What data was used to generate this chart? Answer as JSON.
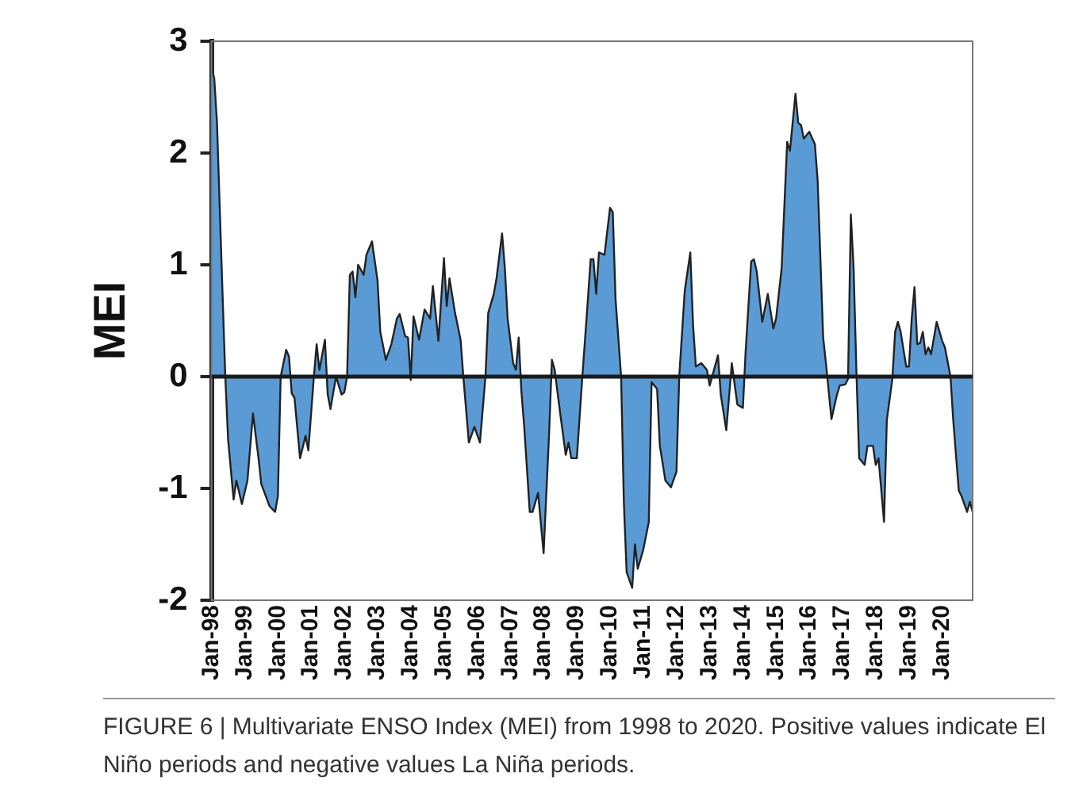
{
  "chart_data": {
    "type": "area",
    "ylabel": "MEI",
    "xlim": [
      "1998-01",
      "2020-12"
    ],
    "xticks": [
      {
        "value": "1998-01",
        "label": "Jan-98"
      },
      {
        "value": "1999-01",
        "label": "Jan-99"
      },
      {
        "value": "2000-01",
        "label": "Jan-00"
      },
      {
        "value": "2001-01",
        "label": "Jan-01"
      },
      {
        "value": "2002-01",
        "label": "Jan-02"
      },
      {
        "value": "2003-01",
        "label": "Jan-03"
      },
      {
        "value": "2004-01",
        "label": "Jan-04"
      },
      {
        "value": "2005-01",
        "label": "Jan-05"
      },
      {
        "value": "2006-01",
        "label": "Jan-06"
      },
      {
        "value": "2007-01",
        "label": "Jan-07"
      },
      {
        "value": "2008-01",
        "label": "Jan-08"
      },
      {
        "value": "2009-01",
        "label": "Jan-09"
      },
      {
        "value": "2010-01",
        "label": "Jan-10"
      },
      {
        "value": "2011-01",
        "label": "Jan-11"
      },
      {
        "value": "2012-01",
        "label": "Jan-12"
      },
      {
        "value": "2013-01",
        "label": "Jan-13"
      },
      {
        "value": "2014-01",
        "label": "Jan-14"
      },
      {
        "value": "2015-01",
        "label": "Jan-15"
      },
      {
        "value": "2016-01",
        "label": "Jan-16"
      },
      {
        "value": "2017-01",
        "label": "Jan-17"
      },
      {
        "value": "2018-01",
        "label": "Jan-18"
      },
      {
        "value": "2019-01",
        "label": "Jan-19"
      },
      {
        "value": "2020-01",
        "label": "Jan-20"
      }
    ],
    "ylim": [
      -2,
      3
    ],
    "yticks": [
      -2,
      -1,
      0,
      1,
      2,
      3
    ],
    "grid": false,
    "legend": false,
    "ref_lines": [
      {
        "axis": "y",
        "value": 0,
        "color": "#1a1a1a"
      }
    ],
    "annotations": [
      "FIGURE 6 | Multivariate ENSO Index (MEI) from 1998 to 2020. Positive values indicate El Niño periods and negative values La Niña periods."
    ],
    "series": [
      {
        "color": "#5b9bd5",
        "x": [
          "1998-01",
          "1998-02",
          "1998-03",
          "1998-05",
          "1998-06",
          "1998-07",
          "1998-09",
          "1998-10",
          "1998-12",
          "1999-02",
          "1999-04",
          "1999-06",
          "1999-07",
          "1999-10",
          "1999-12",
          "2000-01",
          "2000-02",
          "2000-04",
          "2000-05",
          "2000-06",
          "2000-07",
          "2000-09",
          "2000-11",
          "2000-12",
          "2001-02",
          "2001-03",
          "2001-04",
          "2001-06",
          "2001-07",
          "2001-08",
          "2001-10",
          "2001-12",
          "2002-01",
          "2002-02",
          "2002-03",
          "2002-04",
          "2002-05",
          "2002-06",
          "2002-08",
          "2002-09",
          "2002-11",
          "2003-01",
          "2003-02",
          "2003-04",
          "2003-06",
          "2003-08",
          "2003-09",
          "2003-11",
          "2003-12",
          "2004-01",
          "2004-02",
          "2004-04",
          "2004-06",
          "2004-08",
          "2004-09",
          "2004-11",
          "2005-01",
          "2005-02",
          "2005-03",
          "2005-05",
          "2005-07",
          "2005-08",
          "2005-10",
          "2005-12",
          "2006-02",
          "2006-04",
          "2006-05",
          "2006-07",
          "2006-08",
          "2006-10",
          "2006-11",
          "2006-12",
          "2007-02",
          "2007-03",
          "2007-04",
          "2007-05",
          "2007-06",
          "2007-08",
          "2007-09",
          "2007-11",
          "2008-01",
          "2008-03",
          "2008-04",
          "2008-05",
          "2008-07",
          "2008-09",
          "2008-10",
          "2008-11",
          "2009-01",
          "2009-03",
          "2009-05",
          "2009-06",
          "2009-07",
          "2009-08",
          "2009-09",
          "2009-11",
          "2010-01",
          "2010-02",
          "2010-03",
          "2010-05",
          "2010-06",
          "2010-07",
          "2010-09",
          "2010-10",
          "2010-11",
          "2011-01",
          "2011-03",
          "2011-04",
          "2011-06",
          "2011-07",
          "2011-09",
          "2011-11",
          "2012-01",
          "2012-02",
          "2012-04",
          "2012-06",
          "2012-07",
          "2012-08",
          "2012-10",
          "2012-12",
          "2013-01",
          "2013-04",
          "2013-05",
          "2013-07",
          "2013-09",
          "2013-11",
          "2014-01",
          "2014-02",
          "2014-04",
          "2014-05",
          "2014-06",
          "2014-08",
          "2014-10",
          "2014-12",
          "2015-01",
          "2015-03",
          "2015-05",
          "2015-06",
          "2015-08",
          "2015-09",
          "2015-10",
          "2015-11",
          "2016-01",
          "2016-03",
          "2016-04",
          "2016-06",
          "2016-07",
          "2016-09",
          "2016-11",
          "2016-12",
          "2017-02",
          "2017-03",
          "2017-04",
          "2017-05",
          "2017-06",
          "2017-07",
          "2017-09",
          "2017-10",
          "2017-12",
          "2018-01",
          "2018-02",
          "2018-04",
          "2018-05",
          "2018-07",
          "2018-08",
          "2018-09",
          "2018-10",
          "2018-12",
          "2019-01",
          "2019-02",
          "2019-03",
          "2019-04",
          "2019-05",
          "2019-06",
          "2019-07",
          "2019-08",
          "2019-09",
          "2019-11",
          "2020-01",
          "2020-02",
          "2020-04",
          "2020-05",
          "2020-07",
          "2020-08",
          "2020-10",
          "2020-11",
          "2020-12"
        ],
        "values": [
          2.76,
          2.67,
          2.27,
          0.74,
          0,
          -0.56,
          -1.1,
          -0.93,
          -1.14,
          -0.93,
          -0.33,
          -0.73,
          -0.96,
          -1.16,
          -1.21,
          -1.07,
          0,
          0.24,
          0.18,
          -0.15,
          -0.19,
          -0.73,
          -0.53,
          -0.66,
          0,
          0.29,
          0.06,
          0.33,
          -0.16,
          -0.29,
          0,
          -0.16,
          -0.14,
          0,
          0.91,
          0.94,
          0.71,
          1.0,
          0.91,
          1.09,
          1.21,
          0.86,
          0.4,
          0.15,
          0.29,
          0.52,
          0.56,
          0.36,
          0.35,
          -0.03,
          0.54,
          0.33,
          0.6,
          0.52,
          0.81,
          0.32,
          1.06,
          0.63,
          0.88,
          0.57,
          0.33,
          0,
          -0.59,
          -0.45,
          -0.59,
          0,
          0.57,
          0.74,
          0.88,
          1.28,
          0.97,
          0.52,
          0.12,
          0.06,
          0.35,
          -0.14,
          -0.45,
          -1.21,
          -1.21,
          -1.04,
          -1.58,
          -0.5,
          0.15,
          0.06,
          -0.33,
          -0.7,
          -0.59,
          -0.73,
          -0.73,
          0,
          0.69,
          1.05,
          1.05,
          0.74,
          1.11,
          1.09,
          1.51,
          1.47,
          0.69,
          0,
          -1.13,
          -1.75,
          -1.89,
          -1.5,
          -1.72,
          -1.55,
          -1.3,
          -0.05,
          -0.11,
          -0.62,
          -0.93,
          -0.99,
          -0.85,
          0,
          0.77,
          1.11,
          0.46,
          0.09,
          0.12,
          0.06,
          -0.08,
          0.19,
          -0.16,
          -0.48,
          0.12,
          -0.25,
          -0.28,
          0.23,
          1.03,
          1.05,
          0.94,
          0.49,
          0.74,
          0.43,
          0.52,
          0.97,
          2.1,
          2.02,
          2.53,
          2.27,
          2.25,
          2.13,
          2.19,
          2.08,
          1.76,
          0.35,
          0.12,
          -0.38,
          -0.16,
          -0.08,
          -0.07,
          -0.02,
          1.45,
          0.97,
          0.06,
          -0.73,
          -0.79,
          -0.62,
          -0.62,
          -0.79,
          -0.73,
          -1.3,
          -0.39,
          -0.02,
          0.4,
          0.49,
          0.4,
          0.09,
          0.09,
          0.52,
          0.8,
          0.29,
          0.3,
          0.4,
          0.2,
          0.26,
          0.2,
          0.49,
          0.32,
          0.26,
          0,
          -0.39,
          -1.02,
          -1.07,
          -1.21,
          -1.12,
          -1.21
        ]
      }
    ]
  }
}
